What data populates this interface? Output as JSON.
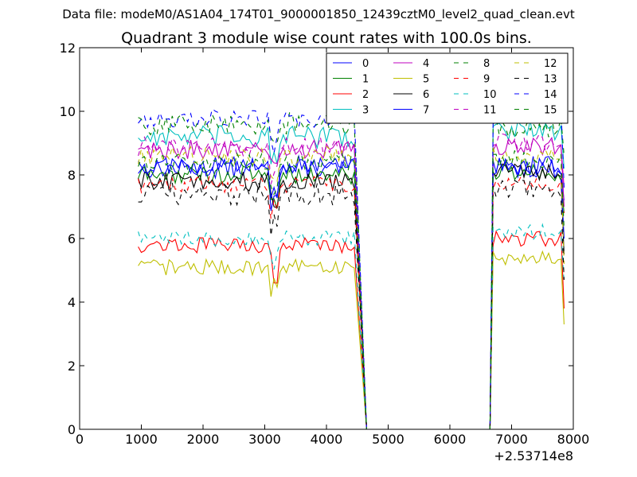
{
  "figure": {
    "suptitle": "Data file: modeM0/AS1A04_174T01_9000001850_12439cztM0_level2_quad_clean.evt"
  },
  "chart_data": {
    "type": "line",
    "title": "Quadrant 3 module wise count rates with 100.0s bins.",
    "xlabel": "",
    "ylabel": "",
    "x_offset_label": "+2.53714e8",
    "xlim": [
      0,
      8000
    ],
    "ylim": [
      0,
      12
    ],
    "xticks": [
      0,
      1000,
      2000,
      3000,
      4000,
      5000,
      6000,
      7000,
      8000
    ],
    "xtick_labels": [
      "0",
      "1000",
      "2000",
      "3000",
      "4000",
      "5000",
      "6000",
      "7000",
      "8000"
    ],
    "yticks": [
      0,
      2,
      4,
      6,
      8,
      10,
      12
    ],
    "ytick_labels": [
      "0",
      "2",
      "4",
      "6",
      "8",
      "10",
      "12"
    ],
    "grid": false,
    "legend": {
      "position": "top-right",
      "columns": 4
    },
    "segments": [
      {
        "x_start": 950,
        "x_end": 4450,
        "step": 50
      },
      {
        "x_start": 6700,
        "x_end": 7850,
        "step": 50
      }
    ],
    "gap": {
      "x_drop_end": 4650,
      "x_rise_start": 6650,
      "value": 0
    },
    "series": [
      {
        "name": "0",
        "color": "#0000ff",
        "dash": "solid",
        "mean": 8.2,
        "mean2": 8.2,
        "amp": 0.3,
        "end_value": 7.2
      },
      {
        "name": "1",
        "color": "#008000",
        "dash": "solid",
        "mean": 8.0,
        "mean2": 8.1,
        "amp": 0.3,
        "end_value": 6.8
      },
      {
        "name": "2",
        "color": "#ff0000",
        "dash": "solid",
        "mean": 5.8,
        "mean2": 6.0,
        "amp": 0.25,
        "end_value": 3.8
      },
      {
        "name": "3",
        "color": "#00bfbf",
        "dash": "solid",
        "mean": 9.2,
        "mean2": 9.4,
        "amp": 0.35,
        "end_value": 8.2
      },
      {
        "name": "4",
        "color": "#bf00bf",
        "dash": "solid",
        "mean": 8.8,
        "mean2": 8.9,
        "amp": 0.3,
        "end_value": 7.0
      },
      {
        "name": "5",
        "color": "#bfbf00",
        "dash": "solid",
        "mean": 5.1,
        "mean2": 5.4,
        "amp": 0.25,
        "end_value": 3.3
      },
      {
        "name": "6",
        "color": "#000000",
        "dash": "solid",
        "mean": 7.8,
        "mean2": 8.1,
        "amp": 0.3,
        "end_value": 5.5
      },
      {
        "name": "7",
        "color": "#0000ff",
        "dash": "solid",
        "mean": 8.3,
        "mean2": 8.3,
        "amp": 0.3,
        "end_value": 6.0
      },
      {
        "name": "8",
        "color": "#008000",
        "dash": "dashed",
        "mean": 9.6,
        "mean2": 9.5,
        "amp": 0.35,
        "end_value": 8.6
      },
      {
        "name": "9",
        "color": "#ff0000",
        "dash": "dashed",
        "mean": 7.7,
        "mean2": 7.7,
        "amp": 0.25,
        "end_value": 6.8
      },
      {
        "name": "10",
        "color": "#00bfbf",
        "dash": "dashed",
        "mean": 6.0,
        "mean2": 6.2,
        "amp": 0.25,
        "end_value": 4.6
      },
      {
        "name": "11",
        "color": "#bf00bf",
        "dash": "dashed",
        "mean": 8.9,
        "mean2": 9.0,
        "amp": 0.3,
        "end_value": 7.6
      },
      {
        "name": "12",
        "color": "#bfbf00",
        "dash": "dashed",
        "mean": 8.6,
        "mean2": 8.6,
        "amp": 0.3,
        "end_value": 5.2
      },
      {
        "name": "13",
        "color": "#000000",
        "dash": "dashed",
        "mean": 7.4,
        "mean2": 7.6,
        "amp": 0.35,
        "end_value": 4.7
      },
      {
        "name": "14",
        "color": "#0000ff",
        "dash": "dashed",
        "mean": 9.8,
        "mean2": 9.9,
        "amp": 0.3,
        "end_value": 7.6
      },
      {
        "name": "15",
        "color": "#008000",
        "dash": "dashed",
        "mean": 8.4,
        "mean2": 8.5,
        "amp": 0.3,
        "end_value": 6.3
      }
    ]
  }
}
